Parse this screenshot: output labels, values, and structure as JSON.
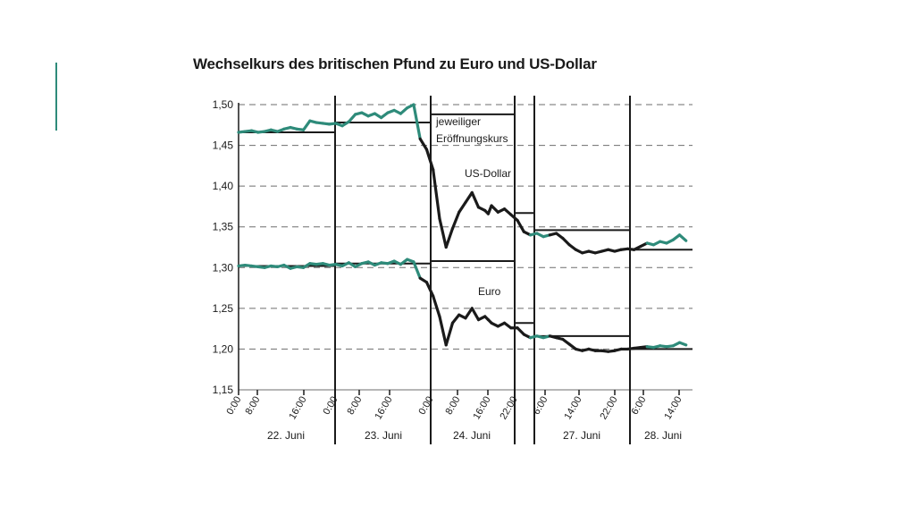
{
  "colors": {
    "accent": "#2e8b7a",
    "line": "#1a1a1a",
    "grid": "#6e6e6e"
  },
  "chart_data": {
    "type": "line",
    "title": "Wechselkurs des britischen Pfund zu Euro und US-Dollar",
    "ylim": [
      1.15,
      1.5
    ],
    "yticks": [
      "1,50",
      "1,45",
      "1,40",
      "1,35",
      "1,30",
      "1,25",
      "1,20",
      "1,15"
    ],
    "ytick_values": [
      1.5,
      1.45,
      1.4,
      1.35,
      1.3,
      1.25,
      1.2,
      1.15
    ],
    "grid": "horizontal dashed",
    "day_labels": [
      "22. Juni",
      "23. Juni",
      "24. Juni",
      "27. Juni",
      "28. Juni"
    ],
    "time_ticks": [
      [
        "0:00",
        "8:00",
        "16:00",
        "0:00"
      ],
      [
        "8:00",
        "16:00",
        "0:00"
      ],
      [
        "8:00",
        "16:00",
        "22:00"
      ],
      [
        "6:00",
        "14:00",
        "22:00"
      ],
      [
        "6:00",
        "14:00"
      ]
    ],
    "annotations": {
      "opening": "jeweiliger Eröffnungskurs",
      "usd": "US-Dollar",
      "eur": "Euro"
    },
    "series": [
      {
        "name": "US-Dollar",
        "x": [
          0,
          2,
          4,
          6,
          8,
          10,
          12,
          14,
          16,
          18,
          20,
          22,
          24,
          26,
          28,
          30,
          32,
          34,
          36,
          38,
          40,
          42,
          44,
          46,
          48,
          50,
          52,
          54,
          56,
          58,
          60,
          62,
          64,
          66,
          68,
          70,
          72,
          74,
          76,
          77,
          78,
          80,
          82,
          84,
          86,
          88,
          90,
          92,
          94,
          96,
          98,
          100,
          102,
          104,
          106,
          108,
          110,
          112,
          114,
          116,
          118,
          120,
          122,
          124,
          126,
          128,
          130,
          132,
          134,
          136,
          138
        ],
        "values": [
          1.466,
          1.467,
          1.468,
          1.466,
          1.467,
          1.469,
          1.467,
          1.47,
          1.472,
          1.47,
          1.469,
          1.48,
          1.478,
          1.477,
          1.476,
          1.477,
          1.474,
          1.479,
          1.488,
          1.49,
          1.486,
          1.489,
          1.484,
          1.49,
          1.493,
          1.489,
          1.496,
          1.5,
          1.458,
          1.445,
          1.42,
          1.36,
          1.325,
          1.348,
          1.368,
          1.38,
          1.392,
          1.374,
          1.37,
          1.366,
          1.376,
          1.368,
          1.372,
          1.365,
          1.358,
          1.344,
          1.34,
          1.342,
          1.338,
          1.34,
          1.342,
          1.336,
          1.328,
          1.322,
          1.318,
          1.32,
          1.318,
          1.32,
          1.322,
          1.32,
          1.322,
          1.323,
          1.322,
          1.326,
          1.33,
          1.328,
          1.332,
          1.33,
          1.334,
          1.34,
          1.333
        ]
      },
      {
        "name": "Euro",
        "x": [
          0,
          2,
          4,
          6,
          8,
          10,
          12,
          14,
          16,
          18,
          20,
          22,
          24,
          26,
          28,
          30,
          32,
          34,
          36,
          38,
          40,
          42,
          44,
          46,
          48,
          50,
          52,
          54,
          56,
          58,
          60,
          62,
          64,
          66,
          68,
          70,
          72,
          74,
          76,
          77,
          78,
          80,
          82,
          84,
          86,
          88,
          90,
          92,
          94,
          96,
          98,
          100,
          102,
          104,
          106,
          108,
          110,
          112,
          114,
          116,
          118,
          120,
          122,
          124,
          126,
          128,
          130,
          132,
          134,
          136,
          138
        ],
        "values": [
          1.302,
          1.303,
          1.302,
          1.301,
          1.3,
          1.302,
          1.301,
          1.303,
          1.299,
          1.301,
          1.3,
          1.305,
          1.304,
          1.305,
          1.303,
          1.304,
          1.302,
          1.306,
          1.301,
          1.305,
          1.307,
          1.303,
          1.306,
          1.305,
          1.308,
          1.304,
          1.31,
          1.307,
          1.287,
          1.282,
          1.265,
          1.24,
          1.205,
          1.232,
          1.242,
          1.238,
          1.25,
          1.236,
          1.24,
          1.236,
          1.232,
          1.228,
          1.232,
          1.226,
          1.226,
          1.218,
          1.214,
          1.216,
          1.214,
          1.216,
          1.214,
          1.212,
          1.206,
          1.2,
          1.198,
          1.2,
          1.198,
          1.198,
          1.197,
          1.198,
          1.2,
          1.2,
          1.201,
          1.202,
          1.203,
          1.202,
          1.204,
          1.203,
          1.204,
          1.208,
          1.205
        ]
      }
    ],
    "opening_levels": [
      {
        "day": "22. Juni",
        "usd": 1.466,
        "eur": 1.302
      },
      {
        "day": "23. Juni",
        "usd": 1.478,
        "eur": 1.305
      },
      {
        "day": "24. Juni",
        "usd": 1.488,
        "eur": 1.308
      },
      {
        "day": "27. Juni",
        "usd": 1.367,
        "eur": 1.232
      },
      {
        "day": "27. Juni",
        "usd": 1.346,
        "eur": 1.216
      },
      {
        "day": "28. Juni",
        "usd": 1.322,
        "eur": 1.2
      }
    ]
  }
}
